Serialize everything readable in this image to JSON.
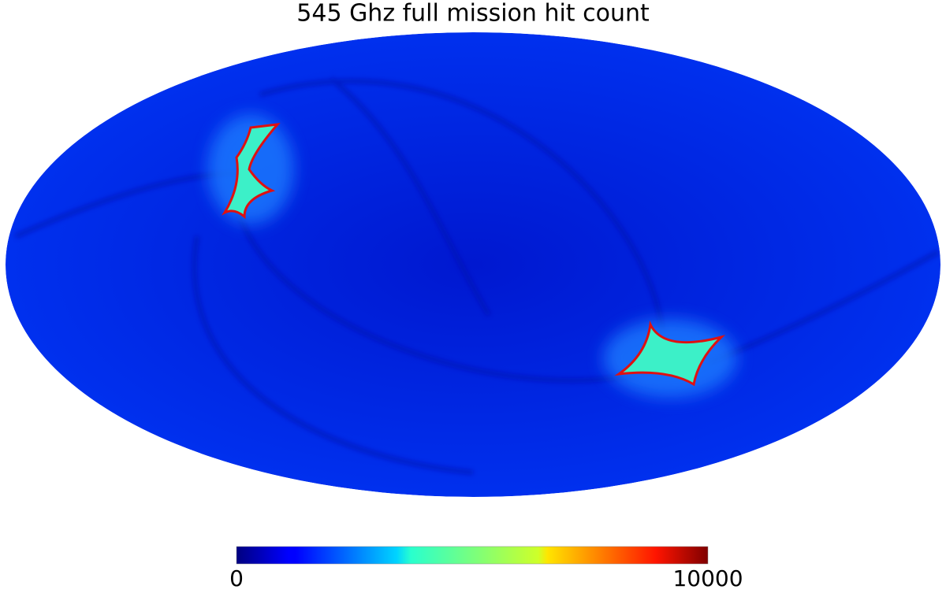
{
  "chart_data": {
    "type": "map",
    "title": "545 Ghz full mission hit count",
    "clim": [
      0,
      10000
    ],
    "cticks": [
      0,
      10000
    ]
  }
}
